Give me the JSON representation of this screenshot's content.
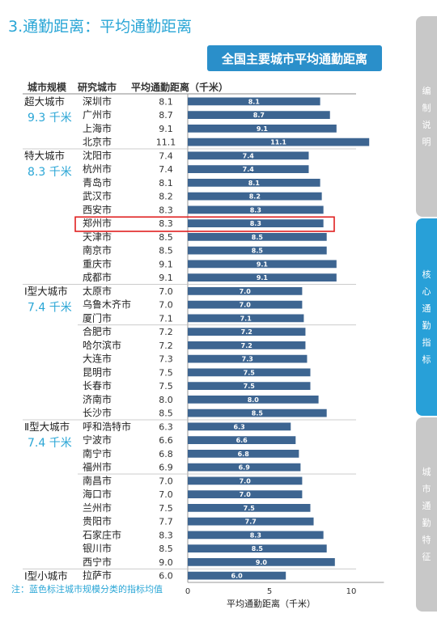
{
  "heading": "3.通勤距离：平均通勤距离",
  "badge": "全国主要城市平均通勤距离",
  "columns": {
    "tier": "城市规模",
    "city": "研究城市",
    "value": "平均通勤距离（千米）"
  },
  "tiers": [
    {
      "name": "超大城市",
      "avg": "9.3 千米"
    },
    {
      "name": "特大城市",
      "avg": "8.3 千米"
    },
    {
      "name": "Ⅰ型大城市",
      "avg": "7.4 千米"
    },
    {
      "name": "Ⅱ型大城市",
      "avg": "7.4 千米"
    },
    {
      "name": "Ⅰ型小城市",
      "avg": ""
    }
  ],
  "chart_data": {
    "type": "bar",
    "orientation": "horizontal",
    "categories": [
      "深圳市",
      "广州市",
      "上海市",
      "北京市",
      "沈阳市",
      "杭州市",
      "青岛市",
      "武汉市",
      "西安市",
      "郑州市",
      "天津市",
      "南京市",
      "重庆市",
      "成都市",
      "太原市",
      "乌鲁木齐市",
      "厦门市",
      "合肥市",
      "哈尔滨市",
      "大连市",
      "昆明市",
      "长春市",
      "济南市",
      "长沙市",
      "呼和浩特市",
      "宁波市",
      "南宁市",
      "福州市",
      "南昌市",
      "海口市",
      "兰州市",
      "贵阳市",
      "石家庄市",
      "银川市",
      "西宁市",
      "拉萨市"
    ],
    "values": [
      8.1,
      8.7,
      9.1,
      11.1,
      7.4,
      7.4,
      8.1,
      8.2,
      8.3,
      8.3,
      8.5,
      8.5,
      9.1,
      9.1,
      7.0,
      7.0,
      7.1,
      7.2,
      7.2,
      7.3,
      7.5,
      7.5,
      8.0,
      8.5,
      6.3,
      6.6,
      6.8,
      6.9,
      7.0,
      7.0,
      7.5,
      7.7,
      8.3,
      8.5,
      9.0,
      6.0
    ],
    "value_labels": [
      "8.1",
      "8.7",
      "9.1",
      "11.1",
      "7.4",
      "7.4",
      "8.1",
      "8.2",
      "8.3",
      "8.3",
      "8.5",
      "8.5",
      "9.1",
      "9.1",
      "7.0",
      "7.0",
      "7.1",
      "7.2",
      "7.2",
      "7.3",
      "7.5",
      "7.5",
      "8.0",
      "8.5",
      "6.3",
      "6.6",
      "6.8",
      "6.9",
      "7.0",
      "7.0",
      "7.5",
      "7.7",
      "8.3",
      "8.5",
      "9.0",
      "6.0"
    ],
    "tier_starts": [
      0,
      4,
      14,
      24,
      35
    ],
    "group_dividers_after": [
      3,
      13,
      16,
      23,
      27,
      34
    ],
    "highlight_index": 9,
    "xlabel": "平均通勤距离（千米）",
    "xticks": [
      "0",
      "5",
      "10"
    ],
    "xlim": [
      0,
      12
    ],
    "bar_color": "#3d6591",
    "highlight_color": "#e02020"
  },
  "footnote": "注：蓝色标注城市规模分类的指标均值",
  "sidebar": [
    {
      "label": "编制说明",
      "active": false
    },
    {
      "label": "核心通勤指标",
      "active": true
    },
    {
      "label": "城市通勤特征",
      "active": false
    }
  ],
  "colors": {
    "accent": "#2aa6d6",
    "badge": "#2a8fca",
    "sidebar_inactive": "#c8c8c8",
    "sidebar_active": "#28a0d8"
  }
}
